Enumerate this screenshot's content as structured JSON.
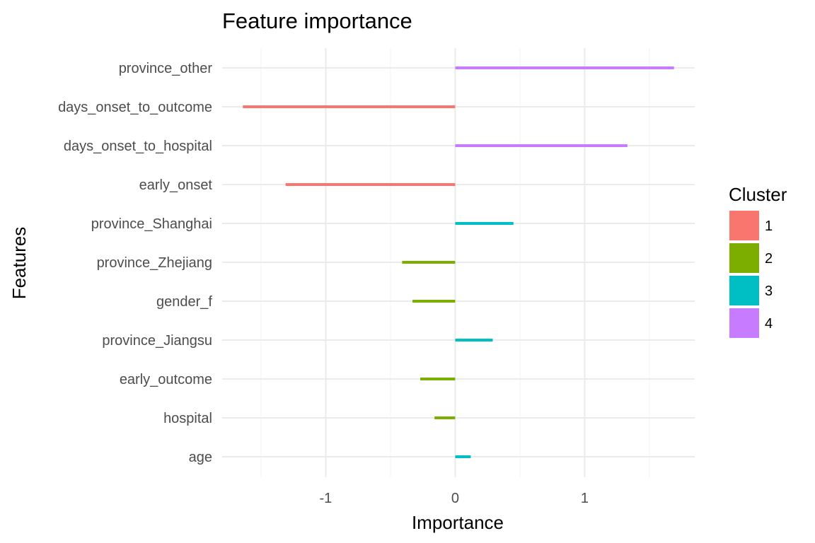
{
  "chart_data": {
    "type": "bar",
    "orientation": "horizontal",
    "title": "Feature importance",
    "xlabel": "Importance",
    "ylabel": "Features",
    "xlim": [
      -1.8,
      1.85
    ],
    "xticks": [
      -1,
      0,
      1
    ],
    "xtick_labels": [
      "-1",
      "0",
      "1"
    ],
    "grid": true,
    "legend": {
      "title": "Cluster",
      "position": "right"
    },
    "categories": [
      "province_other",
      "days_onset_to_outcome",
      "days_onset_to_hospital",
      "early_onset",
      "province_Shanghai",
      "province_Zhejiang",
      "gender_f",
      "province_Jiangsu",
      "early_outcome",
      "hospital",
      "age"
    ],
    "values": [
      1.69,
      -1.64,
      1.33,
      -1.31,
      0.45,
      -0.41,
      -0.33,
      0.29,
      -0.27,
      -0.16,
      0.12
    ],
    "cluster": [
      "4",
      "1",
      "4",
      "1",
      "3",
      "2",
      "2",
      "3",
      "2",
      "2",
      "3"
    ],
    "clusters": [
      {
        "name": "1",
        "color": "#F8766D"
      },
      {
        "name": "2",
        "color": "#7CAE00"
      },
      {
        "name": "3",
        "color": "#00BFC4"
      },
      {
        "name": "4",
        "color": "#C77CFF"
      }
    ]
  }
}
